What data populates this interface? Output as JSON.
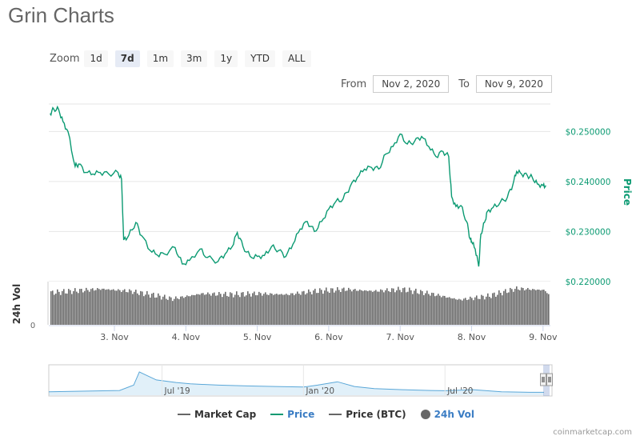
{
  "title": "Grin Charts",
  "zoom": {
    "label": "Zoom",
    "buttons": [
      "1d",
      "7d",
      "1m",
      "3m",
      "1y",
      "YTD",
      "ALL"
    ],
    "active": "7d"
  },
  "range": {
    "from_label": "From",
    "from_value": "Nov 2, 2020",
    "to_label": "To",
    "to_value": "Nov 9, 2020"
  },
  "chart_data": {
    "type": "line",
    "title": "",
    "x_ticks": [
      "3. Nov",
      "4. Nov",
      "5. Nov",
      "6. Nov",
      "7. Nov",
      "8. Nov",
      "9. Nov"
    ],
    "y_axis": {
      "label": "Price",
      "ticks": [
        "$0.250000",
        "$0.240000",
        "$0.230000",
        "$0.220000"
      ],
      "range": [
        0.2195,
        0.2555
      ]
    },
    "volume_axis": {
      "label": "24h Vol",
      "tick": "0"
    },
    "series": [
      {
        "name": "Price",
        "color": "#0b9a72",
        "points": [
          [
            2.1,
            0.2536
          ],
          [
            2.15,
            0.2545
          ],
          [
            2.22,
            0.2544
          ],
          [
            2.28,
            0.252
          ],
          [
            2.35,
            0.25
          ],
          [
            2.45,
            0.243
          ],
          [
            2.5,
            0.2435
          ],
          [
            2.6,
            0.2418
          ],
          [
            2.7,
            0.2415
          ],
          [
            2.8,
            0.2418
          ],
          [
            2.92,
            0.2415
          ],
          [
            3.05,
            0.2418
          ],
          [
            3.1,
            0.2405
          ],
          [
            3.13,
            0.2283
          ],
          [
            3.2,
            0.2292
          ],
          [
            3.3,
            0.2318
          ],
          [
            3.38,
            0.2292
          ],
          [
            3.5,
            0.2262
          ],
          [
            3.6,
            0.2253
          ],
          [
            3.7,
            0.2255
          ],
          [
            3.85,
            0.2268
          ],
          [
            3.95,
            0.2235
          ],
          [
            4.05,
            0.2242
          ],
          [
            4.2,
            0.2265
          ],
          [
            4.3,
            0.2248
          ],
          [
            4.45,
            0.224
          ],
          [
            4.55,
            0.2255
          ],
          [
            4.65,
            0.227
          ],
          [
            4.72,
            0.2298
          ],
          [
            4.8,
            0.227
          ],
          [
            4.9,
            0.225
          ],
          [
            5.0,
            0.225
          ],
          [
            5.1,
            0.2252
          ],
          [
            5.2,
            0.227
          ],
          [
            5.3,
            0.2262
          ],
          [
            5.4,
            0.225
          ],
          [
            5.5,
            0.2275
          ],
          [
            5.6,
            0.2305
          ],
          [
            5.7,
            0.232
          ],
          [
            5.8,
            0.23
          ],
          [
            5.9,
            0.232
          ],
          [
            6.0,
            0.2345
          ],
          [
            6.1,
            0.236
          ],
          [
            6.2,
            0.2365
          ],
          [
            6.3,
            0.239
          ],
          [
            6.4,
            0.2408
          ],
          [
            6.5,
            0.2425
          ],
          [
            6.6,
            0.2428
          ],
          [
            6.7,
            0.2425
          ],
          [
            6.8,
            0.2455
          ],
          [
            6.9,
            0.247
          ],
          [
            7.0,
            0.2495
          ],
          [
            7.1,
            0.2475
          ],
          [
            7.2,
            0.248
          ],
          [
            7.3,
            0.249
          ],
          [
            7.4,
            0.247
          ],
          [
            7.5,
            0.245
          ],
          [
            7.6,
            0.246
          ],
          [
            7.68,
            0.245
          ],
          [
            7.72,
            0.237
          ],
          [
            7.78,
            0.235
          ],
          [
            7.85,
            0.2352
          ],
          [
            7.93,
            0.232
          ],
          [
            7.98,
            0.2285
          ],
          [
            8.0,
            0.228
          ],
          [
            8.05,
            0.2265
          ],
          [
            8.1,
            0.223
          ],
          [
            8.13,
            0.2295
          ],
          [
            8.18,
            0.2318
          ],
          [
            8.22,
            0.234
          ],
          [
            8.3,
            0.2348
          ],
          [
            8.4,
            0.2358
          ],
          [
            8.5,
            0.2368
          ],
          [
            8.58,
            0.2395
          ],
          [
            8.63,
            0.242
          ],
          [
            8.7,
            0.2415
          ],
          [
            8.78,
            0.2412
          ],
          [
            8.85,
            0.2408
          ],
          [
            8.92,
            0.2395
          ],
          [
            9.0,
            0.2392
          ],
          [
            9.04,
            0.2392
          ]
        ]
      },
      {
        "name": "Market Cap",
        "color": "#666666"
      },
      {
        "name": "Price (BTC)",
        "color": "#666666"
      },
      {
        "name": "24h Vol",
        "color": "#666666"
      }
    ],
    "volume": {
      "x_range": [
        2.08,
        9.08
      ],
      "knots": [
        [
          2.08,
          0.74
        ],
        [
          2.4,
          0.78
        ],
        [
          2.8,
          0.83
        ],
        [
          3.2,
          0.78
        ],
        [
          3.55,
          0.68
        ],
        [
          3.8,
          0.6
        ],
        [
          4.2,
          0.72
        ],
        [
          4.6,
          0.7
        ],
        [
          5.0,
          0.72
        ],
        [
          5.4,
          0.7
        ],
        [
          5.8,
          0.78
        ],
        [
          6.2,
          0.82
        ],
        [
          6.6,
          0.78
        ],
        [
          7.0,
          0.82
        ],
        [
          7.4,
          0.72
        ],
        [
          7.8,
          0.58
        ],
        [
          8.2,
          0.66
        ],
        [
          8.6,
          0.84
        ],
        [
          9.0,
          0.8
        ],
        [
          9.08,
          0.6
        ]
      ]
    },
    "navigator": {
      "x_ticks": [
        "Jul '19",
        "Jan '20",
        "Jul '20"
      ],
      "tick_positions": [
        0.5,
        1.0,
        1.5
      ],
      "x_range": [
        0.1,
        1.85
      ],
      "points": [
        [
          0.1,
          0.1
        ],
        [
          0.35,
          0.15
        ],
        [
          0.4,
          0.35
        ],
        [
          0.42,
          0.85
        ],
        [
          0.45,
          0.7
        ],
        [
          0.48,
          0.55
        ],
        [
          0.55,
          0.45
        ],
        [
          0.6,
          0.4
        ],
        [
          0.7,
          0.35
        ],
        [
          0.8,
          0.32
        ],
        [
          0.9,
          0.3
        ],
        [
          1.0,
          0.28
        ],
        [
          1.05,
          0.35
        ],
        [
          1.12,
          0.48
        ],
        [
          1.18,
          0.3
        ],
        [
          1.25,
          0.22
        ],
        [
          1.35,
          0.18
        ],
        [
          1.45,
          0.15
        ],
        [
          1.5,
          0.14
        ],
        [
          1.6,
          0.18
        ],
        [
          1.7,
          0.1
        ],
        [
          1.8,
          0.08
        ],
        [
          1.85,
          0.08
        ]
      ]
    },
    "grid": true,
    "legend": "bottom"
  },
  "legend": {
    "items": [
      {
        "label": "Market Cap",
        "type": "line",
        "color": "#666666"
      },
      {
        "label": "Price",
        "type": "line",
        "color": "#0b9a72"
      },
      {
        "label": "Price (BTC)",
        "type": "line",
        "color": "#666666"
      },
      {
        "label": "24h Vol",
        "type": "dot",
        "color": "#666666"
      }
    ]
  },
  "credits": "coinmarketcap.com"
}
